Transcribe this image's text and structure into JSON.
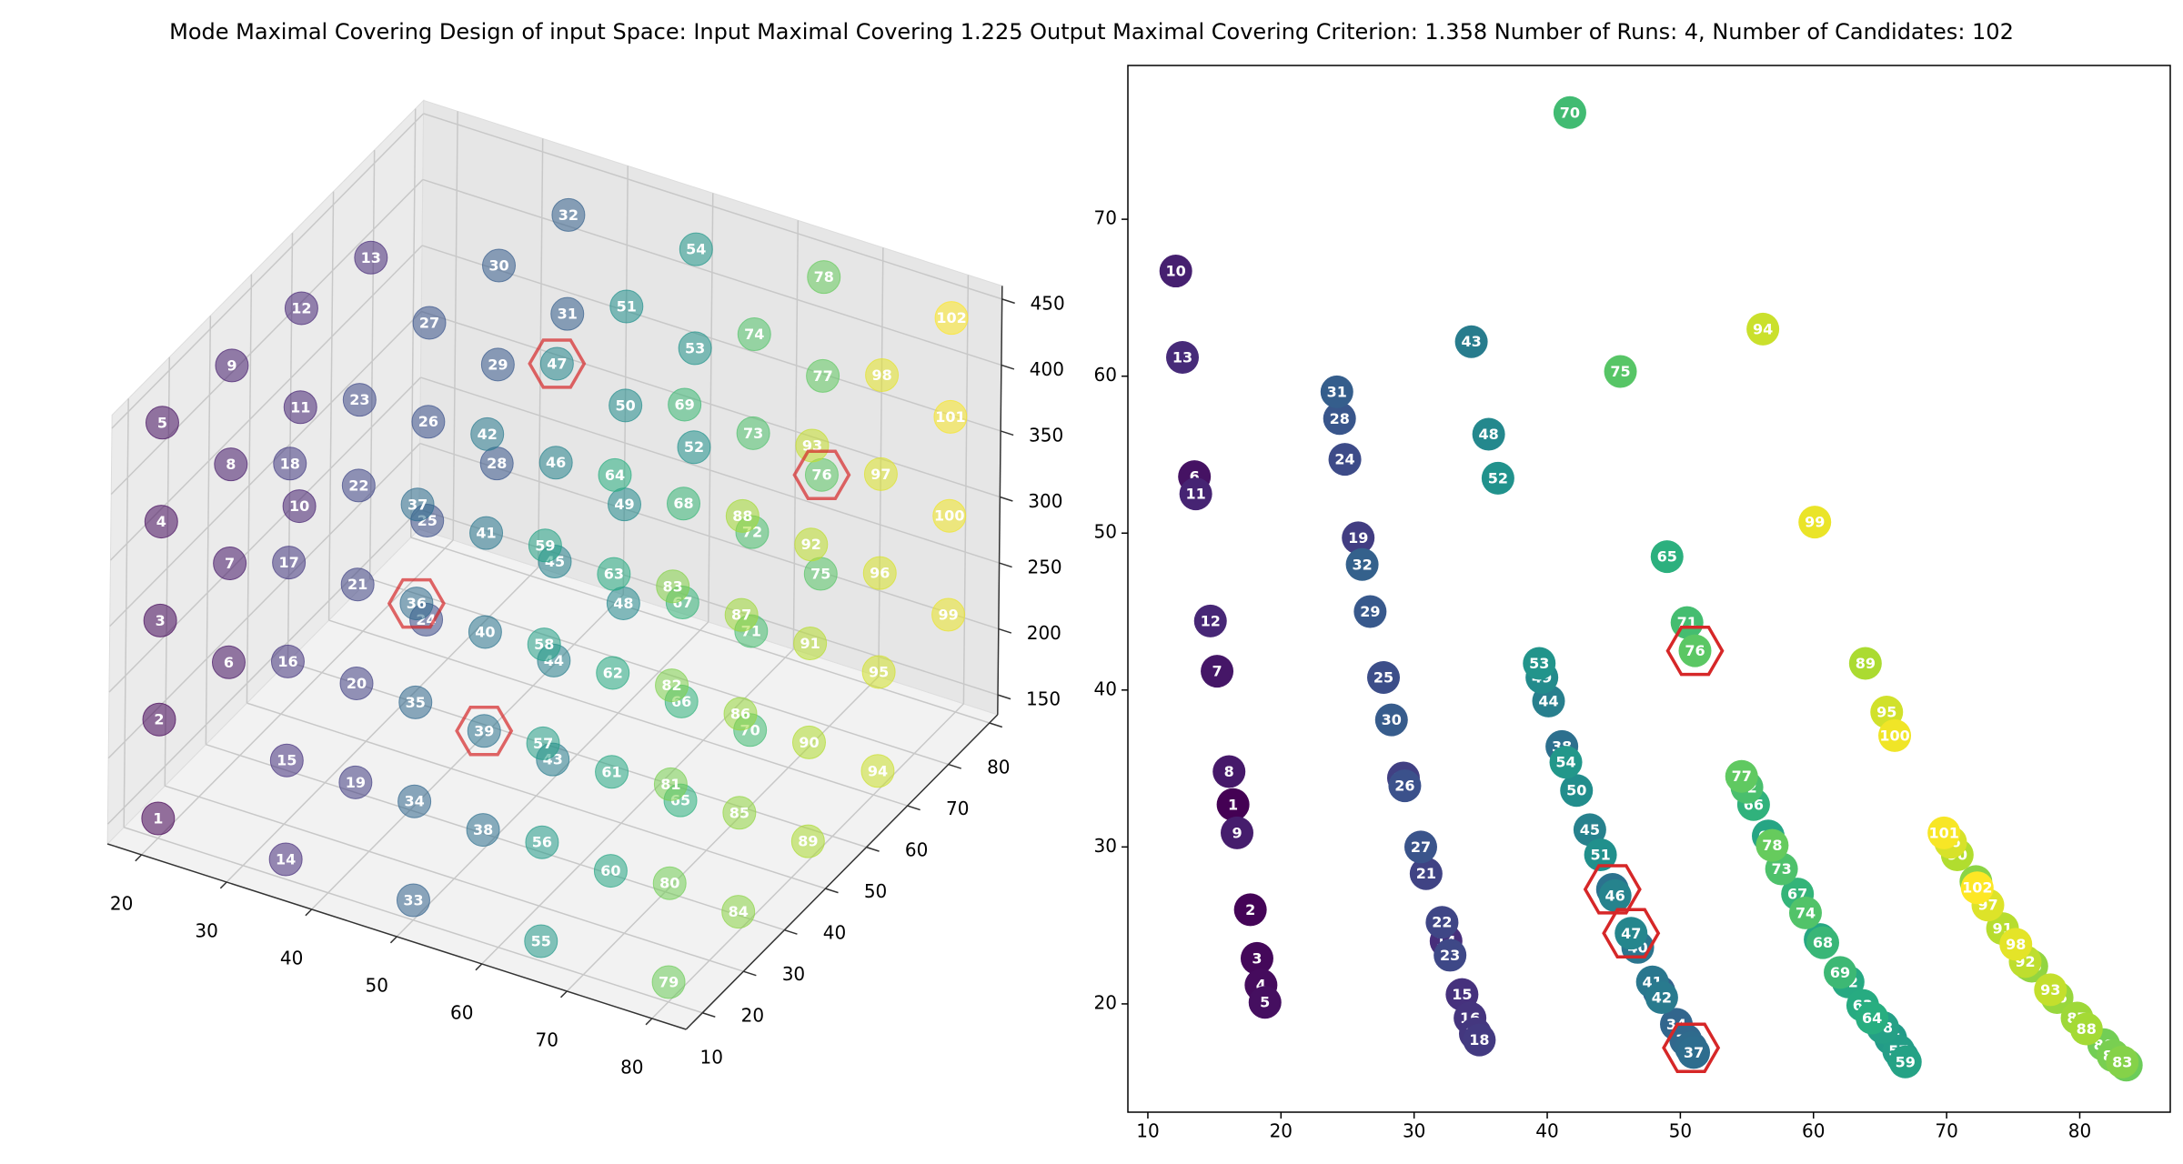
{
  "title": "Mode Maximal Covering Design of input Space: Input Maximal Covering 1.225 Output Maximal Covering Criterion: 1.358 Number of Runs: 4, Number of Candidates: 102",
  "chart_data": [
    {
      "type": "scatter3d",
      "xlim": [
        16,
        84
      ],
      "ylim": [
        6,
        82
      ],
      "zlim": [
        135,
        460
      ],
      "xticks": [
        20,
        30,
        40,
        50,
        60,
        70,
        80
      ],
      "yticks": [
        10,
        20,
        30,
        40,
        50,
        60,
        70,
        80
      ],
      "zticks": [
        150,
        200,
        250,
        300,
        350,
        400,
        450
      ],
      "labels": [
        1,
        2,
        3,
        4,
        5,
        6,
        7,
        8,
        9,
        10,
        11,
        12,
        13,
        14,
        15,
        16,
        17,
        18,
        19,
        20,
        21,
        22,
        23,
        24,
        25,
        26,
        27,
        28,
        29,
        30,
        31,
        32,
        33,
        34,
        35,
        36,
        37,
        38,
        39,
        40,
        41,
        42,
        43,
        44,
        45,
        46,
        47,
        48,
        49,
        50,
        51,
        52,
        53,
        54,
        55,
        56,
        57,
        58,
        59,
        60,
        61,
        62,
        63,
        64,
        65,
        66,
        67,
        68,
        69,
        70,
        71,
        72,
        73,
        74,
        75,
        76,
        77,
        78,
        79,
        80,
        81,
        82,
        83,
        84,
        85,
        86,
        87,
        88,
        89,
        90,
        91,
        92,
        93,
        94,
        95,
        96,
        97,
        98,
        99,
        100,
        101,
        102
      ],
      "x": [
        20,
        20,
        20,
        20,
        20,
        20,
        20,
        20,
        20,
        20,
        20,
        20,
        20,
        35,
        35,
        35,
        35,
        35,
        35,
        35,
        35,
        35,
        35,
        35,
        35,
        35,
        35,
        35,
        35,
        35,
        35,
        35,
        50,
        50,
        50,
        50,
        50,
        50,
        50,
        50,
        50,
        50,
        50,
        50,
        50,
        50,
        50,
        50,
        50,
        50,
        50,
        50,
        50,
        50,
        65,
        65,
        65,
        65,
        65,
        65,
        65,
        65,
        65,
        65,
        65,
        65,
        65,
        65,
        65,
        65,
        65,
        65,
        65,
        65,
        65,
        65,
        65,
        65,
        80,
        80,
        80,
        80,
        80,
        80,
        80,
        80,
        80,
        80,
        80,
        80,
        80,
        80,
        80,
        80,
        80,
        80,
        80,
        80,
        80,
        80,
        80,
        80
      ],
      "y": [
        10,
        10,
        10,
        10,
        10,
        27,
        27,
        27,
        27,
        44,
        44,
        44,
        61,
        10,
        10,
        10,
        10,
        10,
        27,
        27,
        27,
        27,
        27,
        44,
        44,
        44,
        44,
        61,
        61,
        61,
        78,
        78,
        10,
        10,
        10,
        10,
        10,
        27,
        27,
        27,
        27,
        27,
        44,
        44,
        44,
        44,
        44,
        61,
        61,
        61,
        61,
        78,
        78,
        78,
        10,
        10,
        10,
        10,
        10,
        27,
        27,
        27,
        27,
        27,
        44,
        44,
        44,
        44,
        44,
        61,
        61,
        61,
        61,
        61,
        78,
        78,
        78,
        78,
        10,
        10,
        10,
        10,
        10,
        27,
        27,
        27,
        27,
        27,
        44,
        44,
        44,
        44,
        44,
        61,
        61,
        61,
        61,
        61,
        78,
        78,
        78,
        78
      ],
      "z": [
        150,
        225,
        300,
        375,
        450,
        215,
        290,
        365,
        440,
        280,
        355,
        430,
        415,
        150,
        225,
        300,
        375,
        450,
        155,
        230,
        305,
        380,
        445,
        225,
        300,
        375,
        450,
        290,
        365,
        440,
        350,
        425,
        150,
        225,
        300,
        375,
        450,
        150,
        225,
        300,
        375,
        450,
        150,
        225,
        300,
        375,
        450,
        215,
        290,
        365,
        440,
        280,
        355,
        430,
        150,
        225,
        300,
        375,
        450,
        150,
        225,
        300,
        375,
        450,
        150,
        225,
        300,
        375,
        450,
        150,
        225,
        300,
        375,
        450,
        215,
        290,
        365,
        440,
        150,
        225,
        300,
        375,
        450,
        150,
        225,
        300,
        375,
        450,
        150,
        225,
        300,
        375,
        450,
        150,
        225,
        300,
        375,
        450,
        215,
        290,
        365,
        440
      ],
      "selected": [
        36,
        39,
        47,
        76
      ],
      "colormap": [
        "#440154",
        "#472d7b",
        "#3b528b",
        "#2c728e",
        "#21918c",
        "#28ae80",
        "#5ec962",
        "#addc30",
        "#fde725"
      ],
      "highlight_color": "#d62728"
    },
    {
      "type": "scatter",
      "xlim": [
        8.5,
        86.8
      ],
      "ylim": [
        13.1,
        79.8
      ],
      "xticks": [
        10,
        20,
        30,
        40,
        50,
        60,
        70,
        80
      ],
      "yticks": [
        20,
        30,
        40,
        50,
        60,
        70
      ],
      "labels": [
        1,
        2,
        3,
        4,
        5,
        6,
        7,
        8,
        9,
        10,
        11,
        12,
        13,
        14,
        15,
        16,
        17,
        18,
        19,
        20,
        21,
        22,
        23,
        24,
        25,
        26,
        27,
        28,
        29,
        30,
        31,
        32,
        33,
        34,
        35,
        36,
        37,
        38,
        39,
        40,
        41,
        42,
        43,
        44,
        45,
        46,
        47,
        48,
        49,
        50,
        51,
        52,
        53,
        54,
        55,
        56,
        57,
        58,
        59,
        60,
        61,
        62,
        63,
        64,
        65,
        66,
        67,
        68,
        69,
        70,
        71,
        72,
        73,
        74,
        75,
        76,
        77,
        78,
        79,
        80,
        81,
        82,
        83,
        84,
        85,
        86,
        87,
        88,
        89,
        90,
        91,
        92,
        93,
        94,
        95,
        96,
        97,
        98,
        99,
        100,
        101,
        102
      ],
      "x": [
        16.4,
        17.7,
        18.2,
        18.5,
        18.8,
        13.5,
        15.2,
        16.1,
        16.7,
        12.1,
        13.6,
        14.7,
        12.6,
        32.4,
        33.6,
        34.2,
        34.6,
        34.9,
        25.8,
        29.2,
        30.9,
        32.1,
        32.7,
        24.8,
        27.7,
        29.3,
        30.5,
        24.4,
        26.7,
        28.3,
        24.2,
        26.1,
        48.4,
        49.7,
        50.4,
        50.8,
        51.0,
        41.1,
        44.9,
        46.8,
        47.9,
        48.6,
        34.3,
        40.1,
        43.2,
        45.1,
        46.3,
        35.6,
        39.6,
        42.2,
        44.0,
        36.3,
        39.4,
        41.4,
        66.7,
        65.8,
        66.4,
        65.2,
        66.9,
        56.6,
        60.5,
        62.6,
        63.7,
        64.4,
        49.0,
        55.5,
        58.8,
        60.7,
        62.0,
        41.7,
        50.5,
        55.0,
        57.6,
        59.4,
        45.5,
        51.1,
        54.6,
        56.9,
        83.5,
        81.8,
        82.5,
        76.2,
        83.2,
        72.2,
        76.4,
        78.3,
        79.8,
        80.5,
        63.9,
        70.8,
        74.2,
        75.9,
        77.8,
        56.2,
        65.5,
        70.3,
        73.1,
        75.2,
        60.1,
        66.1,
        69.8,
        72.3
      ],
      "y": [
        32.7,
        26.0,
        22.9,
        21.2,
        20.1,
        53.6,
        41.2,
        34.8,
        30.9,
        66.7,
        52.5,
        44.4,
        61.2,
        24.0,
        20.6,
        19.1,
        18.1,
        17.7,
        49.7,
        34.4,
        28.3,
        25.2,
        23.1,
        54.7,
        40.8,
        33.9,
        30.0,
        57.3,
        45.0,
        38.1,
        59.0,
        48.0,
        20.8,
        18.7,
        17.7,
        17.2,
        16.9,
        36.4,
        27.3,
        23.6,
        21.4,
        20.4,
        62.2,
        39.3,
        31.1,
        26.9,
        24.5,
        56.3,
        40.8,
        33.6,
        29.5,
        53.5,
        41.7,
        35.4,
        16.6,
        17.8,
        17.0,
        18.5,
        16.3,
        30.7,
        24.1,
        21.4,
        19.9,
        19.1,
        48.5,
        32.7,
        27.0,
        23.9,
        22.0,
        76.8,
        44.3,
        33.8,
        28.6,
        25.8,
        60.3,
        42.5,
        34.5,
        30.1,
        16.1,
        17.4,
        16.7,
        22.5,
        16.3,
        27.8,
        22.4,
        20.4,
        19.1,
        18.4,
        41.7,
        29.5,
        24.8,
        22.7,
        20.9,
        63.0,
        38.6,
        30.3,
        26.3,
        23.8,
        50.7,
        37.1,
        30.9,
        27.4
      ],
      "selected": [
        36,
        39,
        47,
        76
      ],
      "colormap": [
        "#440154",
        "#472d7b",
        "#3b528b",
        "#2c728e",
        "#21918c",
        "#28ae80",
        "#5ec962",
        "#addc30",
        "#fde725"
      ],
      "highlight_color": "#d62728"
    }
  ]
}
